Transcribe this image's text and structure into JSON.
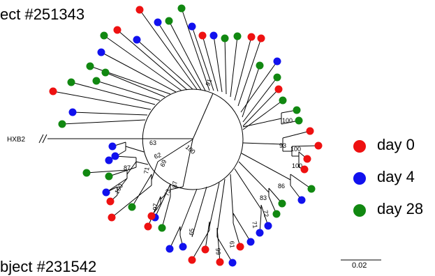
{
  "title": "ect #251343",
  "bottom_title": "bject #231542",
  "outgroup_label": "HXB2",
  "scale_label": "0.02",
  "bootstrap_labels": [
    "91",
    "100",
    "100",
    "93",
    "100",
    "86",
    "83",
    "72",
    "71",
    "61",
    "99",
    "65",
    "87",
    "73",
    "97",
    "100",
    "69",
    "62",
    "63",
    "71",
    "87",
    "100"
  ],
  "legend": [
    {
      "label": "day 0",
      "color": "#ee1111"
    },
    {
      "label": "day 4",
      "color": "#1111ee"
    },
    {
      "label": "day 28",
      "color": "#118811"
    }
  ],
  "colors": {
    "day0": "#ee1111",
    "day4": "#1111ee",
    "day28": "#118811",
    "branch": "#000000"
  }
}
